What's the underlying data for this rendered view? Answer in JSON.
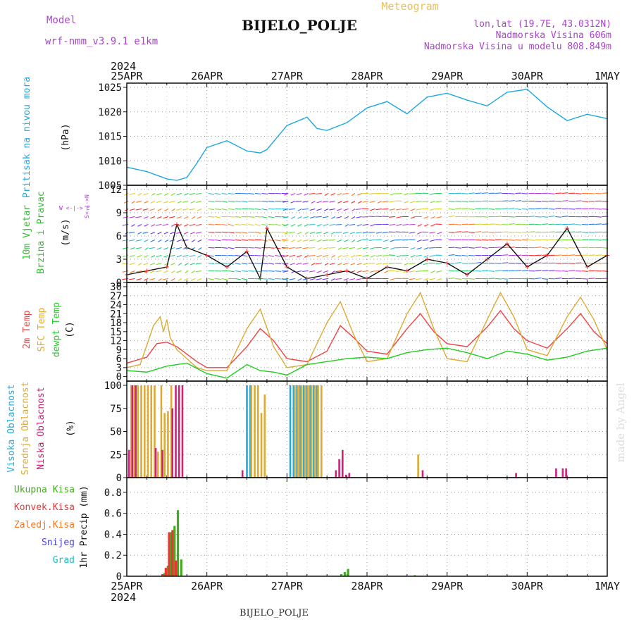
{
  "header": {
    "model_label": "Model",
    "model_name": "wrf-nmm_v3.9.1 e1km",
    "title": "BIJELO_POLJE",
    "subtitle": "Meteogram",
    "lonlat": "lon,lat (19.7E, 43.0312N)",
    "elevation": "Nadmorska Visina 606m",
    "model_elevation": "Nadmorska Visina u modelu 808.849m"
  },
  "footer": {
    "station": "BIJELO_POLJE",
    "credit": "made by Angel"
  },
  "time_axis": {
    "year": "2024",
    "labels": [
      "25APR",
      "26APR",
      "27APR",
      "28APR",
      "29APR",
      "30APR",
      "1MAY"
    ],
    "start": "2024-04-25T00:00",
    "end": "2024-05-01T00:00"
  },
  "colors": {
    "pressure": "#1ea8e0",
    "wind_label": "#33bb33",
    "t2m": "#ee4444",
    "sfc": "#ddaa33",
    "dewpt": "#22cc22",
    "cloud_high": "#22aadd",
    "cloud_mid": "#ddaa33",
    "cloud_low": "#cc2277",
    "rain_total": "#44aa22",
    "rain_conv": "#ee3333",
    "rain_frozen": "#ee7722",
    "snow": "#4444dd",
    "hail": "#22bbbb",
    "wind_dir_label": "#aa44cc"
  },
  "chart_data": [
    {
      "type": "line",
      "name": "pressure",
      "ylabel_main": "Pritisak na nivou mora",
      "ylabel_unit": "(hPa)",
      "ylim": [
        1005,
        1025
      ],
      "yticks": [
        1005,
        1010,
        1015,
        1020,
        1025
      ],
      "grid": true,
      "x_hours": [
        0,
        6,
        12,
        15,
        18,
        21,
        24,
        30,
        36,
        40,
        42,
        48,
        54,
        57,
        60,
        66,
        72,
        78,
        84,
        90,
        96,
        102,
        108,
        114,
        120,
        126,
        132,
        138,
        144
      ],
      "values": [
        1008.7,
        1007.8,
        1006.3,
        1006.0,
        1006.6,
        1009.5,
        1012.7,
        1014.1,
        1012.0,
        1011.6,
        1012.3,
        1017.2,
        1018.9,
        1016.6,
        1016.2,
        1017.8,
        1020.8,
        1022.1,
        1019.6,
        1023.0,
        1023.8,
        1022.4,
        1021.2,
        1024.0,
        1024.6,
        1021.0,
        1018.2,
        1019.5,
        1018.6
      ]
    },
    {
      "type": "scatter",
      "name": "wind",
      "ylabel_main": "10m Vjetar",
      "ylabel_sub": "Brzina i Pravac",
      "ylabel_unit": "(m/s)",
      "compass_label": "W <-|-> E",
      "compass_vertical": "S<-|->N",
      "ylim": [
        0,
        12
      ],
      "yticks": [
        0,
        3,
        6,
        9,
        12
      ],
      "grid": true,
      "x_hours": [
        0,
        6,
        12,
        15,
        18,
        24,
        30,
        36,
        40,
        42,
        48,
        54,
        60,
        66,
        72,
        78,
        84,
        90,
        96,
        102,
        108,
        114,
        120,
        126,
        132,
        138,
        144
      ],
      "values": [
        1.0,
        1.5,
        2.0,
        7.5,
        4.5,
        3.5,
        2.0,
        4.0,
        0.5,
        7.0,
        2.0,
        0.5,
        1.0,
        1.5,
        0.5,
        2.0,
        1.5,
        3.0,
        2.5,
        1.0,
        3.0,
        5.0,
        2.0,
        3.5,
        7.0,
        2.0,
        3.5
      ]
    },
    {
      "type": "line",
      "name": "temperature",
      "ylabel_parts": [
        "2m Temp",
        "SFC Temp",
        "dewpt Temp"
      ],
      "ylabel_unit": "(C)",
      "ylim": [
        -1.5,
        30
      ],
      "yticks": [
        0,
        3,
        6,
        9,
        12,
        15,
        18,
        21,
        24,
        27,
        30
      ],
      "grid": true,
      "series": [
        {
          "name": "2m Temp",
          "x_hours": [
            0,
            6,
            9,
            12,
            15,
            18,
            21,
            24,
            30,
            36,
            40,
            44,
            48,
            54,
            60,
            64,
            68,
            72,
            78,
            84,
            88,
            92,
            96,
            102,
            108,
            112,
            116,
            120,
            126,
            132,
            136,
            140,
            144
          ],
          "values": [
            4.5,
            6.5,
            11.0,
            11.5,
            10.0,
            7.5,
            5.0,
            3.0,
            3.0,
            10.0,
            16.0,
            12.0,
            6.0,
            5.0,
            8.5,
            17.0,
            13.0,
            8.5,
            7.5,
            16.0,
            21.0,
            15.0,
            11.0,
            10.0,
            16.5,
            22.0,
            16.0,
            12.0,
            9.5,
            16.0,
            21.0,
            15.0,
            11.0
          ]
        },
        {
          "name": "SFC Temp",
          "x_hours": [
            0,
            4,
            8,
            10,
            11,
            12,
            13,
            15,
            18,
            21,
            24,
            30,
            36,
            40,
            44,
            48,
            54,
            60,
            64,
            68,
            72,
            78,
            84,
            88,
            92,
            96,
            102,
            108,
            112,
            116,
            120,
            126,
            132,
            136,
            140,
            144
          ],
          "values": [
            3.0,
            4.0,
            17.0,
            20.0,
            15.0,
            19.0,
            13.0,
            9.0,
            6.0,
            3.0,
            2.0,
            2.0,
            16.0,
            22.5,
            10.0,
            3.0,
            4.0,
            18.0,
            25.0,
            14.0,
            5.0,
            6.0,
            21.0,
            28.0,
            16.0,
            6.0,
            5.0,
            19.0,
            28.0,
            20.0,
            9.0,
            7.0,
            20.0,
            26.5,
            19.0,
            9.0
          ]
        },
        {
          "name": "dewpt Temp",
          "x_hours": [
            0,
            6,
            12,
            18,
            24,
            30,
            36,
            40,
            44,
            48,
            54,
            60,
            66,
            72,
            78,
            84,
            90,
            96,
            102,
            108,
            114,
            120,
            126,
            132,
            138,
            144
          ],
          "values": [
            2.0,
            1.5,
            3.5,
            4.5,
            1.0,
            -0.5,
            4.0,
            2.0,
            1.5,
            0.5,
            4.0,
            5.0,
            6.0,
            6.5,
            6.0,
            8.0,
            9.0,
            9.5,
            8.0,
            6.0,
            8.5,
            7.5,
            5.5,
            6.5,
            8.5,
            9.5
          ]
        }
      ]
    },
    {
      "type": "bar",
      "name": "cloud",
      "ylabel_parts": [
        "Visoka Oblacnost",
        "Srednja Oblacnost",
        "Niska Oblacnost"
      ],
      "ylabel_unit": "(%)",
      "ylim": [
        0,
        100
      ],
      "yticks": [
        0,
        25,
        50,
        75,
        100
      ],
      "grid": true,
      "series": [
        {
          "name": "Visoka Oblacnost",
          "x_hours": [
            36,
            37,
            49,
            50,
            51,
            52,
            53,
            54,
            55,
            56,
            57
          ],
          "values": [
            100,
            100,
            100,
            100,
            100,
            100,
            100,
            100,
            100,
            100,
            100
          ]
        },
        {
          "name": "Srednja Oblacnost",
          "x_hours": [
            1,
            2,
            3,
            4,
            5,
            6,
            7,
            8,
            9,
            10,
            11,
            12,
            13,
            37,
            38,
            39,
            40,
            41,
            50,
            51,
            52,
            53,
            54,
            55,
            56,
            57,
            58,
            87
          ],
          "values": [
            100,
            100,
            100,
            100,
            100,
            100,
            100,
            100,
            28,
            100,
            70,
            72,
            100,
            100,
            100,
            100,
            70,
            90,
            100,
            100,
            100,
            100,
            100,
            100,
            100,
            100,
            100,
            25
          ]
        },
        {
          "name": "Niska Oblacnost",
          "x_hours": [
            0,
            1,
            2,
            8,
            10,
            13,
            14,
            15,
            16,
            34,
            62,
            63,
            64,
            65,
            66,
            88,
            116,
            128,
            130,
            131
          ],
          "values": [
            30,
            100,
            100,
            32,
            30,
            75,
            100,
            100,
            100,
            8,
            8,
            20,
            30,
            3,
            5,
            8,
            5,
            10,
            10,
            10
          ]
        }
      ]
    },
    {
      "type": "bar",
      "name": "precipitation",
      "ylabel_parts": [
        "Ukupna Kisa",
        "Konvek.Kisa",
        "Zaledj.Kisa",
        "Snijeg",
        "Grad"
      ],
      "ylabel_unit": "1hr Precip (mm)",
      "ylim": [
        0,
        0.9
      ],
      "yticks": [
        0,
        0.2,
        0.4,
        0.6,
        0.8
      ],
      "grid": true,
      "series": [
        {
          "name": "Ukupna Kisa",
          "x_hours": [
            11,
            12,
            13,
            14,
            15,
            16,
            64,
            65,
            66,
            86
          ],
          "values": [
            0.03,
            0.1,
            0.42,
            0.48,
            0.63,
            0.16,
            0.02,
            0.04,
            0.07,
            0.01
          ]
        },
        {
          "name": "Konvek.Kisa",
          "x_hours": [
            11,
            12,
            13,
            14,
            15
          ],
          "values": [
            0.02,
            0.08,
            0.42,
            0.44,
            0.15
          ]
        }
      ]
    }
  ]
}
